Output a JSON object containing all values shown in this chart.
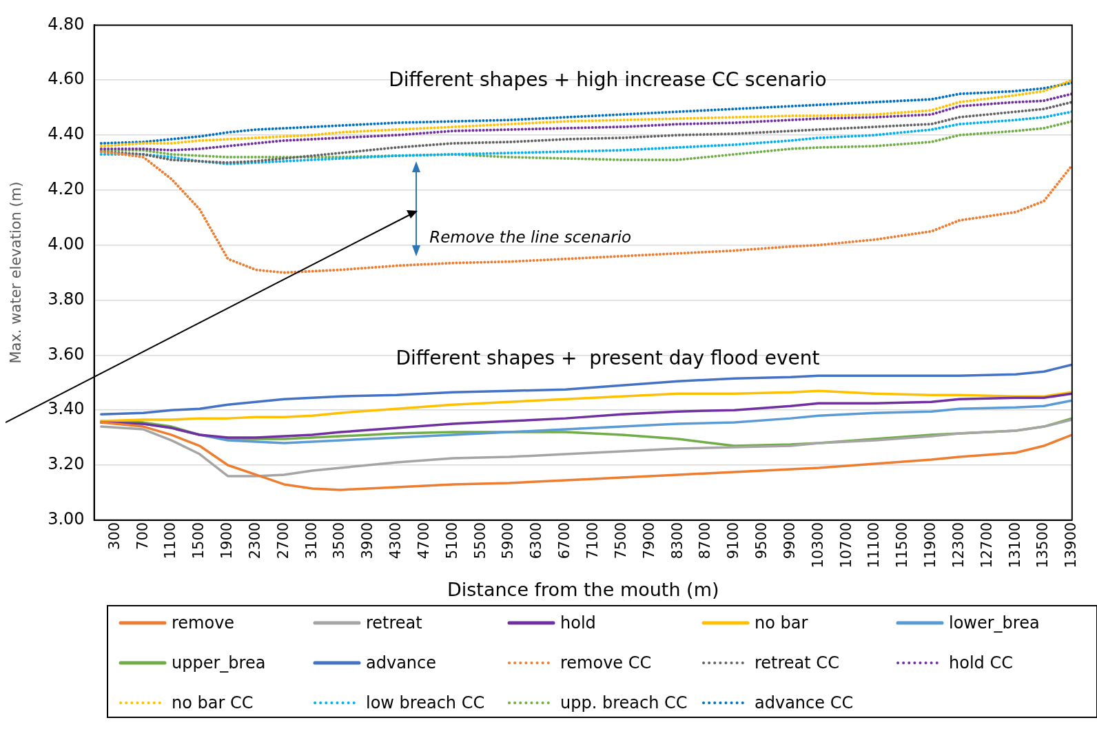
{
  "chart_data": {
    "type": "line",
    "xlabel": "Distance from the mouth (m)",
    "ylabel": "Max. water elevation (m)",
    "x": [
      100,
      700,
      1100,
      1500,
      1900,
      2300,
      2700,
      3100,
      3500,
      4300,
      5100,
      5900,
      6700,
      7500,
      8300,
      9100,
      9900,
      10300,
      11100,
      11900,
      12300,
      13100,
      13500,
      13900
    ],
    "xlim": [
      0,
      13900
    ],
    "xticks": [
      300,
      700,
      1100,
      1500,
      1900,
      2300,
      2700,
      3100,
      3500,
      3900,
      4300,
      4700,
      5100,
      5500,
      5900,
      6300,
      6700,
      7100,
      7500,
      7900,
      8300,
      8700,
      9100,
      9500,
      9900,
      10300,
      10700,
      11100,
      11500,
      11900,
      12300,
      12700,
      13100,
      13500,
      13900
    ],
    "ylim": [
      3,
      4.8
    ],
    "yticks": [
      {
        "value": 3,
        "label": "3.00"
      },
      {
        "value": 3.2,
        "label": "3.20"
      },
      {
        "value": 3.4,
        "label": "3.40"
      },
      {
        "value": 3.6,
        "label": "3.60"
      },
      {
        "value": 3.8,
        "label": "3.80"
      },
      {
        "value": 4,
        "label": "4.00"
      },
      {
        "value": 4.2,
        "label": "4.20"
      },
      {
        "value": 4.4,
        "label": "4.40"
      },
      {
        "value": 4.6,
        "label": "4.60"
      },
      {
        "value": 4.8,
        "label": "4.80"
      }
    ],
    "grid": "y",
    "legend": "bottom",
    "marker": "none",
    "annotations": [
      "Different shapes + high increase CC scenario",
      "Different shapes +  present day flood event",
      "Remove the line scenario"
    ],
    "series": [
      {
        "name": "remove",
        "color": "#ed7d31",
        "line_style": "solid",
        "values": [
          3.355,
          3.34,
          3.31,
          3.27,
          3.2,
          3.165,
          3.13,
          3.115,
          3.11,
          3.12,
          3.13,
          3.135,
          3.145,
          3.155,
          3.165,
          3.175,
          3.185,
          3.19,
          3.205,
          3.22,
          3.23,
          3.245,
          3.27,
          3.31
        ]
      },
      {
        "name": "retreat",
        "color": "#a5a5a5",
        "line_style": "solid",
        "values": [
          3.34,
          3.33,
          3.29,
          3.24,
          3.16,
          3.16,
          3.165,
          3.18,
          3.19,
          3.21,
          3.225,
          3.23,
          3.24,
          3.25,
          3.26,
          3.265,
          3.27,
          3.28,
          3.29,
          3.305,
          3.315,
          3.325,
          3.34,
          3.365
        ]
      },
      {
        "name": "hold",
        "color": "#7030a0",
        "line_style": "solid",
        "values": [
          3.355,
          3.35,
          3.335,
          3.31,
          3.3,
          3.3,
          3.305,
          3.31,
          3.32,
          3.335,
          3.35,
          3.36,
          3.37,
          3.385,
          3.395,
          3.4,
          3.415,
          3.425,
          3.425,
          3.43,
          3.44,
          3.445,
          3.445,
          3.46
        ]
      },
      {
        "name": "no bar",
        "color": "#ffc000",
        "line_style": "solid",
        "values": [
          3.36,
          3.365,
          3.365,
          3.37,
          3.37,
          3.375,
          3.375,
          3.38,
          3.39,
          3.405,
          3.42,
          3.43,
          3.44,
          3.45,
          3.46,
          3.46,
          3.465,
          3.47,
          3.46,
          3.455,
          3.455,
          3.45,
          3.45,
          3.465
        ]
      },
      {
        "name": "lower_brea",
        "color": "#5b9bd5",
        "line_style": "solid",
        "values": [
          3.355,
          3.35,
          3.335,
          3.31,
          3.29,
          3.285,
          3.28,
          3.285,
          3.29,
          3.3,
          3.31,
          3.32,
          3.33,
          3.34,
          3.35,
          3.355,
          3.37,
          3.38,
          3.39,
          3.395,
          3.405,
          3.41,
          3.415,
          3.435
        ]
      },
      {
        "name": "upper_brea",
        "color": "#70ad47",
        "line_style": "solid",
        "values": [
          3.36,
          3.355,
          3.34,
          3.31,
          3.295,
          3.295,
          3.295,
          3.3,
          3.305,
          3.315,
          3.32,
          3.32,
          3.32,
          3.31,
          3.295,
          3.27,
          3.275,
          3.28,
          3.295,
          3.31,
          3.315,
          3.325,
          3.34,
          3.37
        ]
      },
      {
        "name": "advance",
        "color": "#4472c4",
        "line_style": "solid",
        "values": [
          3.385,
          3.39,
          3.4,
          3.405,
          3.42,
          3.43,
          3.44,
          3.445,
          3.45,
          3.455,
          3.465,
          3.47,
          3.475,
          3.49,
          3.505,
          3.515,
          3.52,
          3.525,
          3.525,
          3.525,
          3.525,
          3.53,
          3.54,
          3.565
        ]
      },
      {
        "name": "remove CC",
        "color": "#ed7d31",
        "line_style": "dotted",
        "values": [
          4.34,
          4.32,
          4.24,
          4.13,
          3.95,
          3.91,
          3.9,
          3.905,
          3.91,
          3.925,
          3.935,
          3.94,
          3.95,
          3.96,
          3.97,
          3.98,
          3.995,
          4,
          4.02,
          4.05,
          4.09,
          4.12,
          4.16,
          4.29
        ]
      },
      {
        "name": "retreat CC",
        "color": "#636363",
        "line_style": "dotted",
        "values": [
          4.34,
          4.33,
          4.31,
          4.305,
          4.3,
          4.305,
          4.315,
          4.325,
          4.335,
          4.355,
          4.37,
          4.375,
          4.385,
          4.39,
          4.4,
          4.405,
          4.415,
          4.42,
          4.43,
          4.44,
          4.465,
          4.485,
          4.495,
          4.52
        ]
      },
      {
        "name": "hold CC",
        "color": "#7030a0",
        "line_style": "dotted",
        "values": [
          4.35,
          4.35,
          4.345,
          4.35,
          4.36,
          4.37,
          4.38,
          4.385,
          4.39,
          4.4,
          4.415,
          4.42,
          4.425,
          4.43,
          4.44,
          4.445,
          4.455,
          4.46,
          4.465,
          4.475,
          4.505,
          4.52,
          4.525,
          4.55
        ]
      },
      {
        "name": "no bar CC",
        "color": "#ffc000",
        "line_style": "dotted",
        "values": [
          4.36,
          4.37,
          4.37,
          4.38,
          4.385,
          4.39,
          4.395,
          4.4,
          4.41,
          4.42,
          4.43,
          4.44,
          4.45,
          4.455,
          4.46,
          4.465,
          4.47,
          4.47,
          4.475,
          4.49,
          4.52,
          4.545,
          4.56,
          4.6
        ]
      },
      {
        "name": "low breach CC",
        "color": "#00b0f0",
        "line_style": "dotted",
        "values": [
          4.33,
          4.33,
          4.32,
          4.305,
          4.295,
          4.3,
          4.305,
          4.31,
          4.315,
          4.325,
          4.33,
          4.335,
          4.34,
          4.345,
          4.355,
          4.365,
          4.38,
          4.39,
          4.4,
          4.42,
          4.44,
          4.455,
          4.465,
          4.485
        ]
      },
      {
        "name": "upp. breach CC",
        "color": "#70ad47",
        "line_style": "dotted",
        "values": [
          4.345,
          4.345,
          4.33,
          4.325,
          4.32,
          4.32,
          4.32,
          4.32,
          4.32,
          4.325,
          4.33,
          4.32,
          4.315,
          4.31,
          4.31,
          4.33,
          4.35,
          4.355,
          4.36,
          4.375,
          4.4,
          4.415,
          4.425,
          4.45
        ]
      },
      {
        "name": "advance CC",
        "color": "#0070c0",
        "line_style": "dotted",
        "values": [
          4.37,
          4.375,
          4.385,
          4.395,
          4.41,
          4.42,
          4.425,
          4.43,
          4.435,
          4.445,
          4.45,
          4.455,
          4.465,
          4.475,
          4.485,
          4.495,
          4.505,
          4.51,
          4.52,
          4.53,
          4.55,
          4.56,
          4.57,
          4.59
        ]
      }
    ]
  }
}
